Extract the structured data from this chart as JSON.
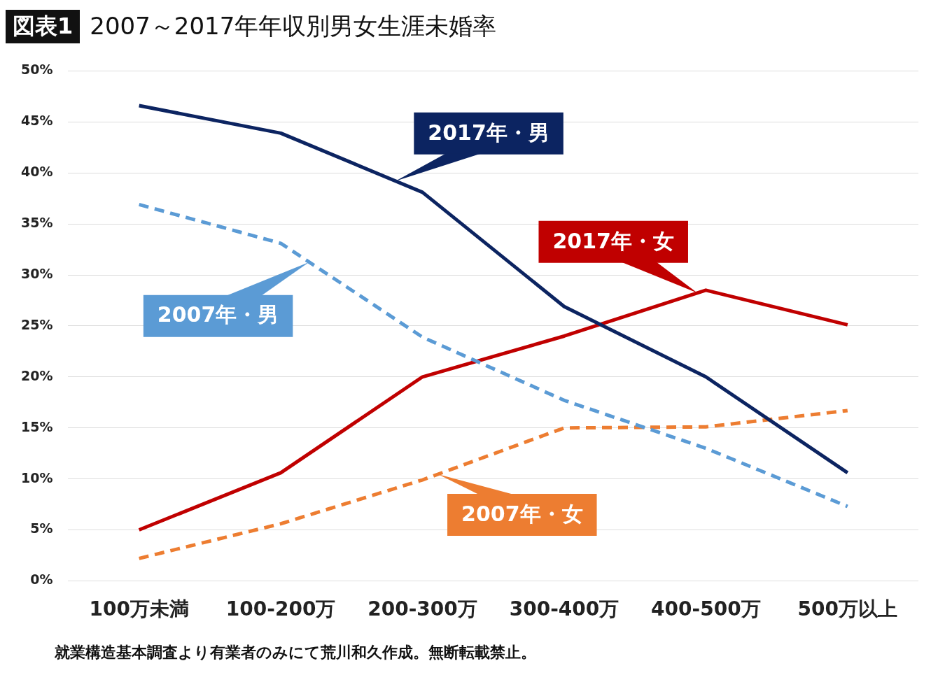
{
  "chart_data": {
    "type": "line",
    "title": "2007～2017年年収別男女生涯未婚率",
    "annotations": [
      "図表1",
      "就業構造基本調査より有業者のみにて荒川和久作成。無断転載禁止。"
    ],
    "categories": [
      "100万未満",
      "100-200万",
      "200-300万",
      "300-400万",
      "400-500万",
      "500万以上"
    ],
    "series": [
      {
        "name": "2017年・男",
        "color": "#0c2461",
        "values": [
          46.6,
          43.9,
          38.1,
          26.9,
          20.0,
          10.6
        ],
        "line_style": "solid"
      },
      {
        "name": "2007年・男",
        "color": "#5b9bd5",
        "values": [
          36.9,
          33.1,
          23.9,
          17.7,
          13.0,
          7.3
        ],
        "line_style": "dashed"
      },
      {
        "name": "2017年・女",
        "color": "#c00000",
        "values": [
          5.0,
          10.6,
          20.0,
          24.0,
          28.5,
          25.1
        ],
        "line_style": "solid"
      },
      {
        "name": "2007年・女",
        "color": "#ed7d31",
        "values": [
          2.2,
          5.6,
          9.9,
          15.0,
          15.1,
          16.7
        ],
        "line_style": "dashed"
      }
    ],
    "ylim": [
      0,
      50
    ],
    "yticks": [
      {
        "value": 0,
        "label": "0%"
      },
      {
        "value": 5,
        "label": "5%"
      },
      {
        "value": 10,
        "label": "10%"
      },
      {
        "value": 15,
        "label": "15%"
      },
      {
        "value": 20,
        "label": "20%"
      },
      {
        "value": 25,
        "label": "25%"
      },
      {
        "value": 30,
        "label": "30%"
      },
      {
        "value": 35,
        "label": "35%"
      },
      {
        "value": 40,
        "label": "40%"
      },
      {
        "value": 45,
        "label": "45%"
      },
      {
        "value": 50,
        "label": "50%"
      }
    ],
    "grid": "y",
    "legend": "bottom left",
    "marker": "none"
  }
}
